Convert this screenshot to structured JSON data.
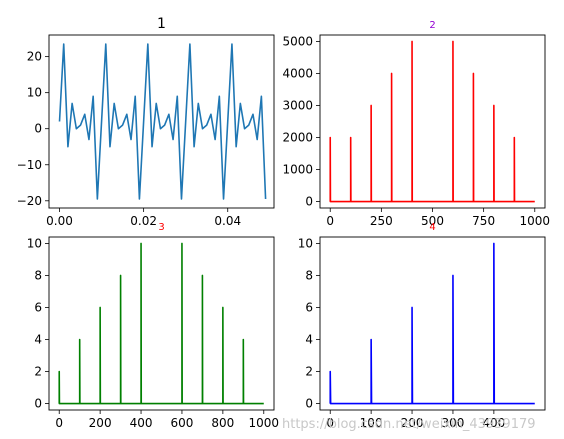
{
  "chart_data": [
    {
      "type": "line",
      "title": "1",
      "title_color": "#000000",
      "color": "#1f77b4",
      "xlim": [
        -0.0025,
        0.051
      ],
      "ylim": [
        -22,
        26
      ],
      "xticks": [
        0.0,
        0.02,
        0.04
      ],
      "xtick_labels": [
        "0.00",
        "0.02",
        "0.04"
      ],
      "yticks": [
        -20,
        -10,
        0,
        10,
        20
      ],
      "ytick_labels": [
        "−20",
        "−10",
        "0",
        "10",
        "20"
      ],
      "x": [
        0.0,
        0.001,
        0.002,
        0.003,
        0.004,
        0.005,
        0.006,
        0.007,
        0.008,
        0.009,
        0.01,
        0.011,
        0.012,
        0.013,
        0.014,
        0.015,
        0.016,
        0.017,
        0.018,
        0.019,
        0.02,
        0.021,
        0.022,
        0.023,
        0.024,
        0.025,
        0.026,
        0.027,
        0.028,
        0.029,
        0.03,
        0.031,
        0.032,
        0.033,
        0.034,
        0.035,
        0.036,
        0.037,
        0.038,
        0.039,
        0.04,
        0.041,
        0.042,
        0.043,
        0.044,
        0.045,
        0.046,
        0.047,
        0.048,
        0.049
      ],
      "y": [
        2,
        23.5,
        -5,
        7,
        0,
        1,
        4,
        -3,
        9,
        -19.5,
        2,
        23.5,
        -5,
        7,
        0,
        1,
        4,
        -3,
        9,
        -19.5,
        2,
        23.5,
        -5,
        7,
        0,
        1,
        4,
        -3,
        9,
        -19.5,
        2,
        23.5,
        -5,
        7,
        0,
        1,
        4,
        -3,
        9,
        -19.5,
        2,
        23.5,
        -5,
        7,
        0,
        1,
        4,
        -3,
        9,
        -19.5
      ]
    },
    {
      "type": "line",
      "title": "2",
      "title_color": "#9400d3",
      "color": "#ff0000",
      "xlim": [
        -50,
        1050
      ],
      "ylim": [
        -200,
        5200
      ],
      "xticks": [
        0,
        250,
        500,
        750,
        1000
      ],
      "xtick_labels": [
        "0",
        "250",
        "500",
        "750",
        "1000"
      ],
      "yticks": [
        0,
        1000,
        2000,
        3000,
        4000,
        5000
      ],
      "ytick_labels": [
        "0",
        "1000",
        "2000",
        "3000",
        "4000",
        "5000"
      ],
      "x_range": [
        0,
        1000
      ],
      "spikes": [
        [
          0,
          2000
        ],
        [
          100,
          2000
        ],
        [
          200,
          3000
        ],
        [
          300,
          4000
        ],
        [
          400,
          5000
        ],
        [
          600,
          5000
        ],
        [
          700,
          4000
        ],
        [
          800,
          3000
        ],
        [
          900,
          2000
        ]
      ]
    },
    {
      "type": "line",
      "title": "3",
      "title_color": "#ff0000",
      "color": "#008000",
      "xlim": [
        -50,
        1050
      ],
      "ylim": [
        -0.4,
        10.4
      ],
      "xticks": [
        0,
        200,
        400,
        600,
        800,
        1000
      ],
      "xtick_labels": [
        "0",
        "200",
        "400",
        "600",
        "800",
        "1000"
      ],
      "yticks": [
        0,
        2,
        4,
        6,
        8,
        10
      ],
      "ytick_labels": [
        "0",
        "2",
        "4",
        "6",
        "8",
        "10"
      ],
      "x_range": [
        0,
        1000
      ],
      "spikes": [
        [
          0,
          2
        ],
        [
          100,
          4
        ],
        [
          200,
          6
        ],
        [
          300,
          8
        ],
        [
          400,
          10
        ],
        [
          600,
          10
        ],
        [
          700,
          8
        ],
        [
          800,
          6
        ],
        [
          900,
          4
        ]
      ]
    },
    {
      "type": "line",
      "title": "4",
      "title_color": "#ff0000",
      "color": "#0000ff",
      "xlim": [
        -25,
        525
      ],
      "ylim": [
        -0.4,
        10.4
      ],
      "xticks": [
        0,
        100,
        200,
        300,
        400
      ],
      "xtick_labels": [
        "0",
        "100",
        "200",
        "300",
        "400"
      ],
      "yticks": [
        0,
        2,
        4,
        6,
        8,
        10
      ],
      "ytick_labels": [
        "0",
        "2",
        "4",
        "6",
        "8",
        "10"
      ],
      "x_range": [
        0,
        500
      ],
      "spikes": [
        [
          0,
          2
        ],
        [
          100,
          4
        ],
        [
          200,
          6
        ],
        [
          300,
          8
        ],
        [
          400,
          10
        ]
      ]
    }
  ],
  "watermark": "https://blog.csdn.net/weixin_43939179"
}
